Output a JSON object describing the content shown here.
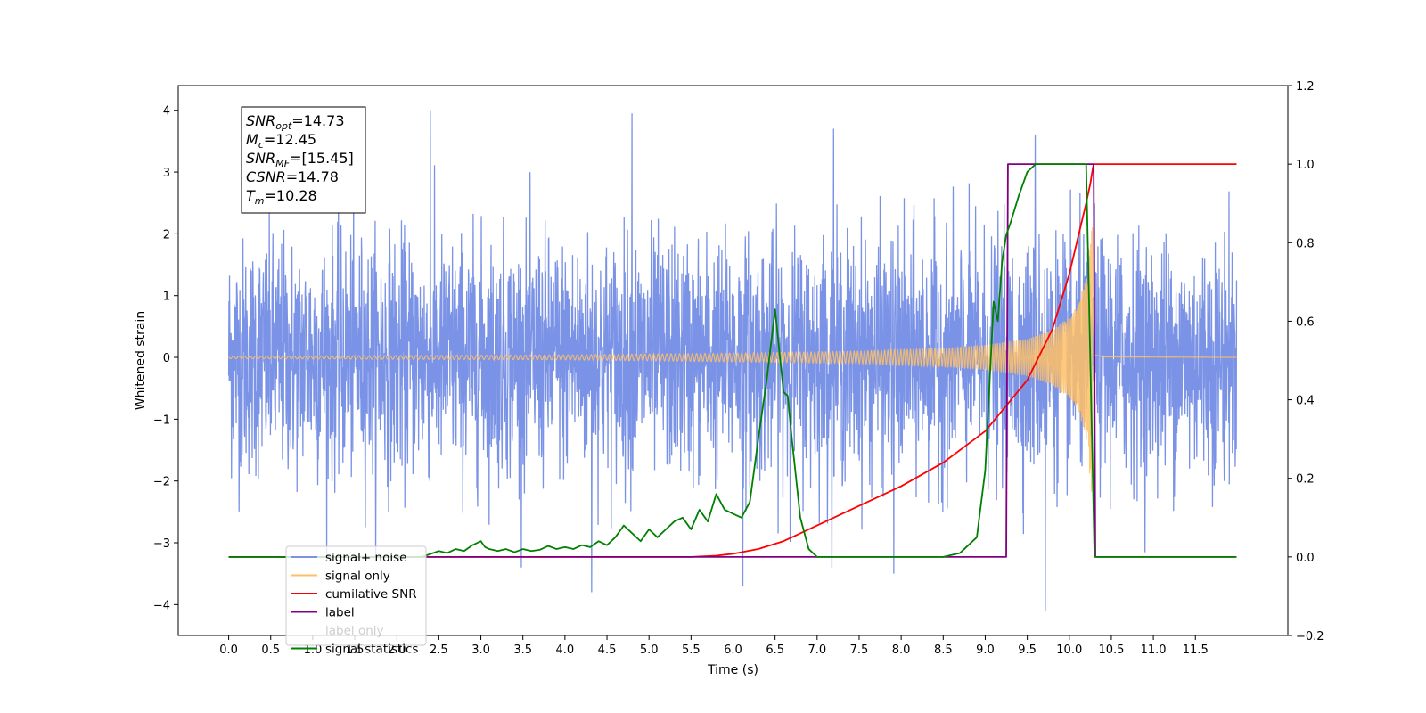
{
  "chart_data": {
    "type": "line",
    "xlabel": "Time (s)",
    "ylabel": "Whitened strain",
    "x_range": [
      -0.6,
      12.6
    ],
    "x_ticks": [
      0.0,
      0.5,
      1.0,
      1.5,
      2.0,
      2.5,
      3.0,
      3.5,
      4.0,
      4.5,
      5.0,
      5.5,
      6.0,
      6.5,
      7.0,
      7.5,
      8.0,
      8.5,
      9.0,
      9.5,
      10.0,
      10.5,
      11.0,
      11.5
    ],
    "x_tick_labels": [
      "0.0",
      "0.5",
      "1.0",
      "1.5",
      "2.0",
      "2.5",
      "3.0",
      "3.5",
      "4.0",
      "4.5",
      "5.0",
      "5.5",
      "6.0",
      "6.5",
      "7.0",
      "7.5",
      "8.0",
      "8.5",
      "9.0",
      "9.5",
      "10.0",
      "10.5",
      "11.0",
      "11.5"
    ],
    "y_left_range": [
      -4.5,
      4.4
    ],
    "y_left_ticks": [
      -4,
      -3,
      -2,
      -1,
      0,
      1,
      2,
      3,
      4
    ],
    "y_left_tick_labels": [
      "−4",
      "−3",
      "−2",
      "−1",
      "0",
      "1",
      "2",
      "3",
      "4"
    ],
    "y_right_range": [
      -0.2,
      1.2
    ],
    "y_right_ticks": [
      -0.2,
      0.0,
      0.2,
      0.4,
      0.6,
      0.8,
      1.0,
      1.2
    ],
    "y_right_tick_labels": [
      "−0.2",
      "0.0",
      "0.2",
      "0.4",
      "0.6",
      "0.8",
      "1.0",
      "1.2"
    ],
    "grid": false,
    "legend_position": "lower-left",
    "annotation": {
      "lines": [
        {
          "base": "SNR",
          "sub": "opt",
          "value": "=14.73"
        },
        {
          "base": "M",
          "sub": "c",
          "value": "=12.45"
        },
        {
          "base": "SNR",
          "sub": "MF",
          "value": "=[15.45]"
        },
        {
          "base": "CSNR",
          "sub": "",
          "value": "=14.78"
        },
        {
          "base": "T",
          "sub": "m",
          "value": "=10.28"
        }
      ]
    },
    "series": [
      {
        "name": "signal+ noise",
        "color": "#7b93e6",
        "axis": "left",
        "kind": "noise",
        "x_start": 0.0,
        "x_end": 11.99,
        "std": 0.95,
        "peaks_high": [
          4.0,
          3.95,
          3.7,
          3.6
        ],
        "peaks_low": [
          -3.8,
          -3.7,
          -3.5,
          -4.1
        ]
      },
      {
        "name": "signal only",
        "color": "#ffbf66",
        "axis": "left",
        "kind": "chirp",
        "x_start": 0.0,
        "x_end": 11.99,
        "merger_time": 10.28,
        "envelope": {
          "x": [
            0.0,
            4.0,
            6.0,
            7.5,
            8.5,
            9.0,
            9.5,
            9.8,
            10.0,
            10.1,
            10.2,
            10.27,
            10.28,
            10.3,
            10.4,
            11.99
          ],
          "a": [
            0.02,
            0.04,
            0.07,
            0.1,
            0.15,
            0.2,
            0.3,
            0.45,
            0.65,
            0.85,
            1.3,
            2.3,
            2.3,
            0.1,
            0.02,
            0.0
          ]
        }
      },
      {
        "name": "cumilative SNR",
        "color": "#ff0000",
        "axis": "right",
        "x": [
          0.0,
          5.5,
          5.8,
          6.0,
          6.3,
          6.6,
          7.0,
          7.5,
          8.0,
          8.5,
          9.0,
          9.5,
          9.8,
          10.0,
          10.1,
          10.2,
          10.25,
          10.28,
          10.29,
          11.99
        ],
        "y": [
          0.0,
          0.0,
          0.003,
          0.008,
          0.02,
          0.04,
          0.08,
          0.13,
          0.18,
          0.24,
          0.32,
          0.45,
          0.58,
          0.72,
          0.81,
          0.9,
          0.95,
          0.99,
          1.0,
          1.0
        ]
      },
      {
        "name": "label",
        "color": "#800080",
        "axis": "right",
        "x": [
          0.0,
          9.25,
          9.27,
          10.29,
          10.31,
          11.99
        ],
        "y": [
          0.0,
          0.0,
          1.0,
          1.0,
          0.0,
          0.0
        ]
      },
      {
        "name": "label only",
        "color": "#800080",
        "axis": "right",
        "hidden": true,
        "x": [],
        "y": []
      },
      {
        "name": "signal statistics",
        "color": "#008000",
        "axis": "right",
        "x": [
          0.0,
          2.3,
          2.5,
          2.6,
          2.7,
          2.8,
          2.9,
          3.0,
          3.05,
          3.1,
          3.2,
          3.3,
          3.4,
          3.5,
          3.6,
          3.7,
          3.8,
          3.9,
          4.0,
          4.1,
          4.2,
          4.3,
          4.4,
          4.5,
          4.6,
          4.7,
          4.8,
          4.9,
          5.0,
          5.1,
          5.2,
          5.3,
          5.4,
          5.5,
          5.6,
          5.7,
          5.8,
          5.9,
          6.0,
          6.1,
          6.2,
          6.3,
          6.4,
          6.5,
          6.6,
          6.65,
          6.7,
          6.8,
          6.9,
          7.0,
          8.5,
          8.7,
          8.9,
          9.0,
          9.1,
          9.15,
          9.2,
          9.25,
          9.3,
          9.4,
          9.5,
          9.6,
          9.7,
          9.8,
          10.0,
          10.1,
          10.2,
          10.25,
          10.3,
          10.35,
          11.99
        ],
        "y": [
          0.0,
          0.0,
          0.015,
          0.01,
          0.02,
          0.015,
          0.03,
          0.04,
          0.025,
          0.02,
          0.015,
          0.02,
          0.012,
          0.02,
          0.015,
          0.018,
          0.028,
          0.02,
          0.025,
          0.02,
          0.03,
          0.025,
          0.04,
          0.03,
          0.05,
          0.08,
          0.06,
          0.04,
          0.07,
          0.05,
          0.07,
          0.09,
          0.1,
          0.07,
          0.12,
          0.09,
          0.16,
          0.12,
          0.11,
          0.1,
          0.14,
          0.3,
          0.45,
          0.63,
          0.42,
          0.41,
          0.3,
          0.1,
          0.02,
          0.0,
          0.0,
          0.01,
          0.05,
          0.22,
          0.65,
          0.6,
          0.75,
          0.82,
          0.85,
          0.92,
          0.98,
          1.0,
          1.0,
          1.0,
          1.0,
          1.0,
          1.0,
          0.5,
          0.0,
          0.0,
          0.0
        ]
      }
    ]
  }
}
